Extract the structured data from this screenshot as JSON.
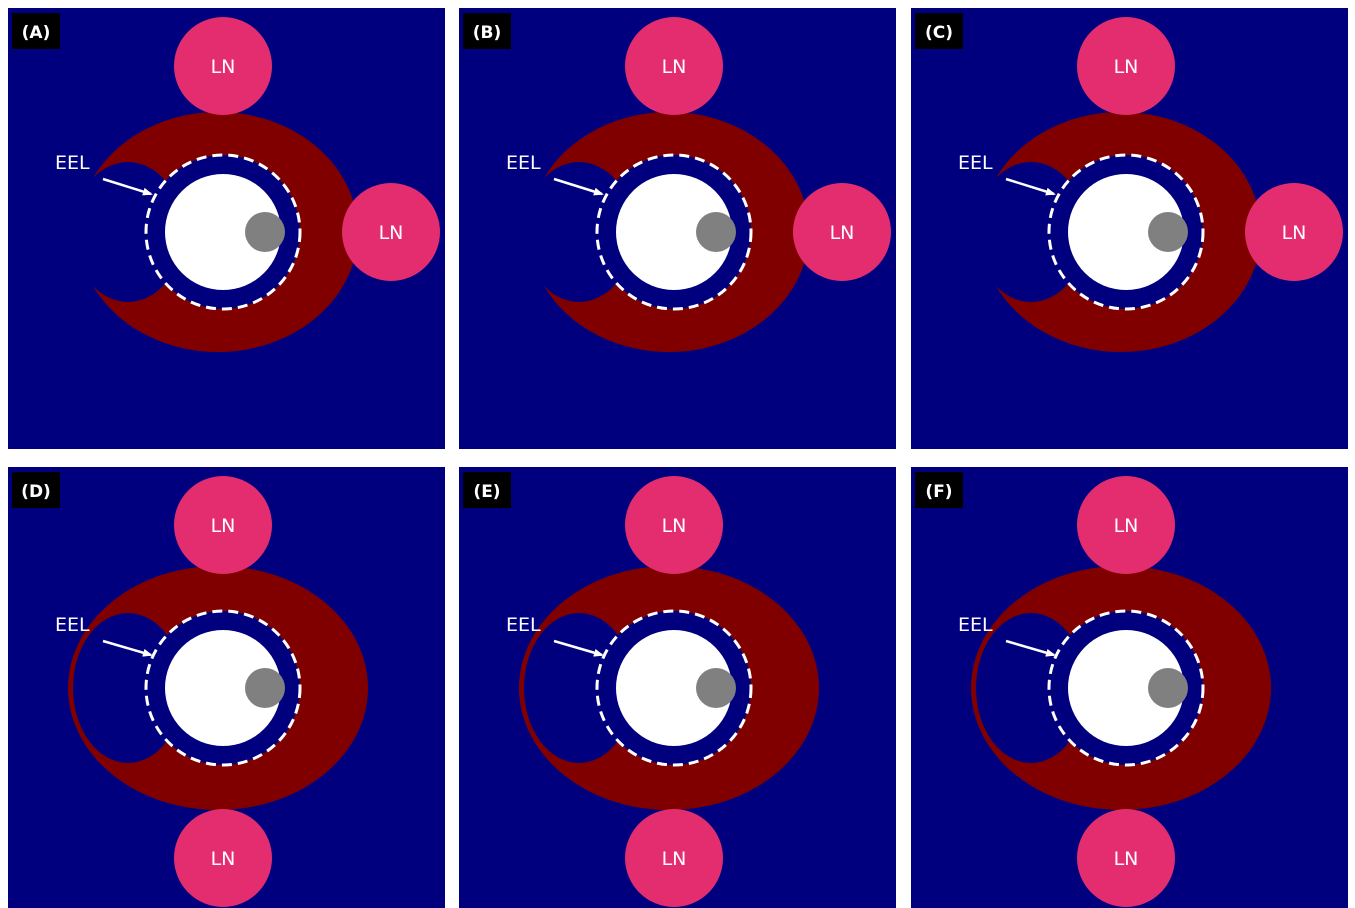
{
  "colors": {
    "background": "#00007f",
    "plaque": "#800000",
    "lymph_node": "#e42d6e",
    "lumen": "#ffffff",
    "core": "#808080",
    "eel": "#ffffff",
    "label_box": "#000000",
    "label_text": "#ffffff"
  },
  "eel_label": "EEL",
  "ln_label": "LN",
  "panels": [
    {
      "label": "(A)",
      "ln_positions": [
        "top",
        "right"
      ]
    },
    {
      "label": "(B)",
      "ln_positions": [
        "top",
        "right"
      ]
    },
    {
      "label": "(C)",
      "ln_positions": [
        "top",
        "right"
      ]
    },
    {
      "label": "(D)",
      "ln_positions": [
        "top",
        "bottom"
      ]
    },
    {
      "label": "(E)",
      "ln_positions": [
        "top",
        "bottom"
      ]
    },
    {
      "label": "(F)",
      "ln_positions": [
        "top",
        "bottom"
      ]
    }
  ]
}
